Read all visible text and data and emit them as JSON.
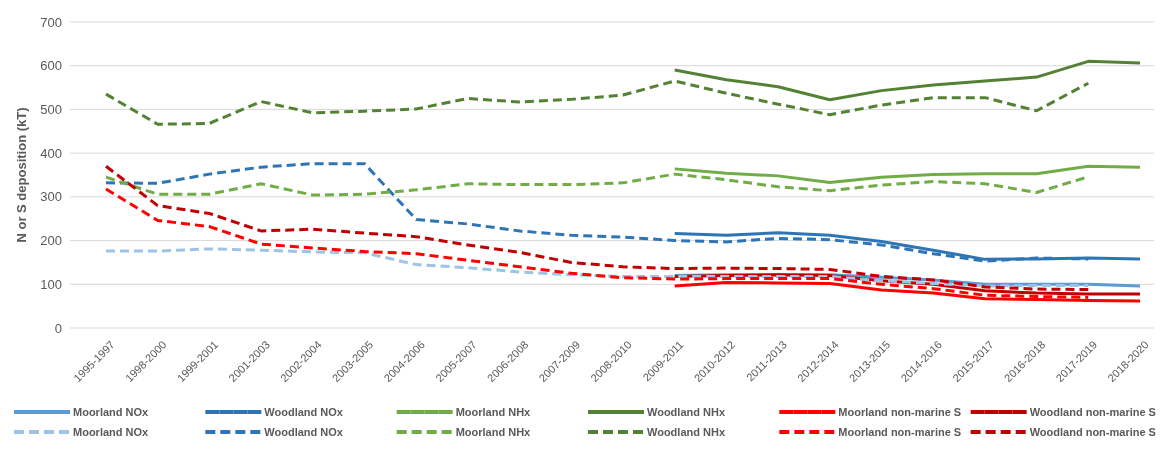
{
  "chart_data": {
    "type": "line",
    "ylabel": "N or S deposition (kT)",
    "ylim": [
      0,
      700
    ],
    "yticks": [
      0,
      100,
      200,
      300,
      400,
      500,
      600,
      700
    ],
    "grid": "y",
    "legend": "bottom",
    "marker": "none",
    "categories": [
      "1995-1997",
      "1998-2000",
      "1999-2001",
      "2001-2003",
      "2002-2004",
      "2003-2005",
      "2004-2006",
      "2005-2007",
      "2006-2008",
      "2007-2009",
      "2008-2010",
      "2009-2011",
      "2010-2012",
      "2011-2013",
      "2012-2014",
      "2013-2015",
      "2014-2016",
      "2015-2017",
      "2016-2018",
      "2017-2019",
      "2018-2020"
    ],
    "series": [
      {
        "name": "Moorland NOx",
        "color": "#5b9bd5",
        "line_style": "solid",
        "values": [
          null,
          null,
          null,
          null,
          null,
          null,
          null,
          null,
          null,
          null,
          null,
          120,
          122,
          122,
          122,
          116,
          110,
          100,
          100,
          100,
          96
        ]
      },
      {
        "name": "Woodland NOx",
        "color": "#2e75b6",
        "line_style": "solid",
        "values": [
          null,
          null,
          null,
          null,
          null,
          null,
          null,
          null,
          null,
          null,
          null,
          216,
          212,
          218,
          212,
          198,
          178,
          157,
          158,
          160,
          158
        ]
      },
      {
        "name": "Moorland NHx",
        "color": "#70ad47",
        "line_style": "solid",
        "values": [
          null,
          null,
          null,
          null,
          null,
          null,
          null,
          null,
          null,
          null,
          null,
          364,
          354,
          348,
          333,
          345,
          351,
          353,
          353,
          370,
          368
        ]
      },
      {
        "name": "Woodland NHx",
        "color": "#548235",
        "line_style": "solid",
        "values": [
          null,
          null,
          null,
          null,
          null,
          null,
          null,
          null,
          null,
          null,
          null,
          590,
          568,
          552,
          522,
          543,
          556,
          565,
          574,
          610,
          606
        ]
      },
      {
        "name": "Moorland non-marine S",
        "color": "#ff0000",
        "line_style": "solid",
        "values": [
          null,
          null,
          null,
          null,
          null,
          null,
          null,
          null,
          null,
          null,
          null,
          96,
          104,
          103,
          102,
          87,
          80,
          67,
          65,
          63,
          62
        ]
      },
      {
        "name": "Woodland non-marine S",
        "color": "#c00000",
        "line_style": "solid",
        "values": [
          null,
          null,
          null,
          null,
          null,
          null,
          null,
          null,
          null,
          null,
          null,
          118,
          120,
          122,
          120,
          108,
          100,
          85,
          80,
          78,
          78
        ]
      },
      {
        "name": "Moorland NOx",
        "color": "#9dc3e6",
        "line_style": "dashed",
        "values": [
          176,
          176,
          181,
          178,
          174,
          172,
          145,
          138,
          128,
          122,
          118,
          118,
          118,
          118,
          118,
          108,
          102,
          96,
          97,
          97,
          null
        ]
      },
      {
        "name": "Woodland NOx",
        "color": "#2e75b6",
        "line_style": "dashed",
        "values": [
          332,
          331,
          352,
          368,
          376,
          376,
          248,
          238,
          222,
          212,
          208,
          200,
          197,
          205,
          202,
          190,
          170,
          153,
          160,
          158,
          null
        ]
      },
      {
        "name": "Moorland NHx",
        "color": "#70ad47",
        "line_style": "dashed",
        "values": [
          345,
          306,
          306,
          330,
          304,
          306,
          316,
          330,
          328,
          328,
          332,
          352,
          339,
          323,
          314,
          327,
          335,
          330,
          310,
          346,
          null
        ]
      },
      {
        "name": "Woodland NHx",
        "color": "#548235",
        "line_style": "dashed",
        "values": [
          535,
          466,
          468,
          518,
          492,
          496,
          501,
          525,
          517,
          523,
          533,
          565,
          537,
          512,
          488,
          510,
          527,
          527,
          497,
          560,
          null
        ]
      },
      {
        "name": "Moorland non-marine S",
        "color": "#ff0000",
        "line_style": "dashed",
        "values": [
          318,
          246,
          232,
          192,
          183,
          175,
          170,
          155,
          140,
          125,
          115,
          112,
          113,
          113,
          113,
          100,
          90,
          75,
          72,
          70,
          null
        ]
      },
      {
        "name": "Woodland non-marine S",
        "color": "#c00000",
        "line_style": "dashed",
        "values": [
          370,
          280,
          262,
          222,
          226,
          217,
          209,
          190,
          173,
          150,
          140,
          136,
          137,
          136,
          134,
          118,
          110,
          94,
          89,
          88,
          null
        ]
      }
    ]
  }
}
